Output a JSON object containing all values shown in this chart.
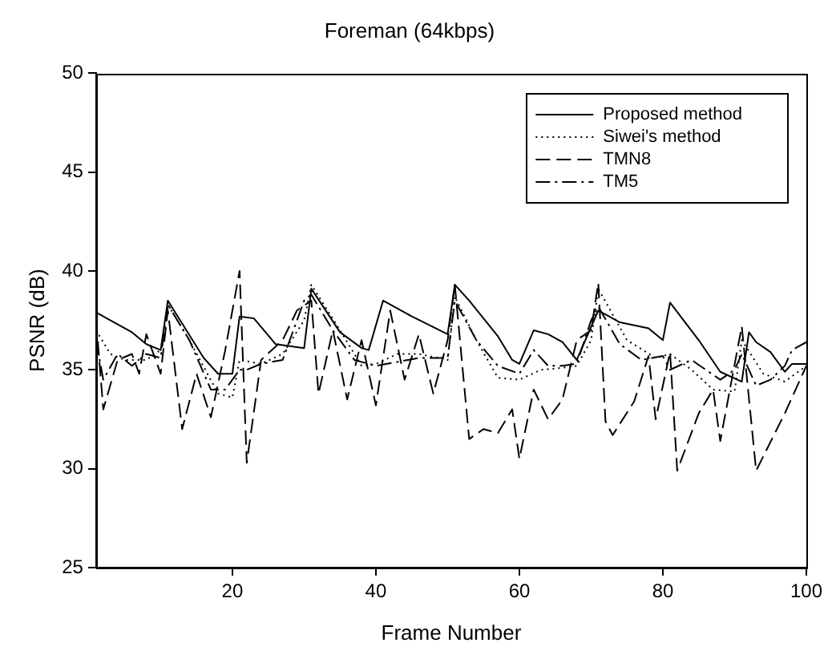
{
  "chart_data": {
    "type": "line",
    "title": "Foreman (64kbps)",
    "xlabel": "Frame Number",
    "ylabel": "PSNR (dB)",
    "xlim": [
      1,
      100
    ],
    "xticks": [
      20,
      40,
      60,
      80,
      100
    ],
    "ylim": [
      25,
      50
    ],
    "yticks": [
      25,
      30,
      35,
      40,
      45,
      50
    ],
    "grid": false,
    "legend": "top right",
    "marker": "none",
    "series": [
      {
        "name": "Proposed method",
        "color": "#000000",
        "line_style": "solid",
        "x": [
          1,
          3,
          6,
          8,
          10,
          11,
          16,
          18,
          20,
          21,
          23,
          26,
          28,
          30,
          31,
          35,
          38,
          39,
          41,
          45,
          50,
          51,
          53,
          57,
          59,
          60,
          62,
          64,
          66,
          68,
          71,
          74,
          78,
          80,
          81,
          85,
          88,
          91,
          92,
          93,
          95,
          97,
          98,
          100
        ],
        "values": [
          37.9,
          37.5,
          36.9,
          36.3,
          36.0,
          38.5,
          35.6,
          34.8,
          34.8,
          37.7,
          37.6,
          36.3,
          36.2,
          36.1,
          39.1,
          36.9,
          36.1,
          36.0,
          38.5,
          37.7,
          36.8,
          39.3,
          38.5,
          36.7,
          35.5,
          35.3,
          37.0,
          36.8,
          36.4,
          35.5,
          38.0,
          37.4,
          37.1,
          36.5,
          38.4,
          36.5,
          34.9,
          34.4,
          36.9,
          36.4,
          35.9,
          34.9,
          35.3,
          35.3
        ]
      },
      {
        "name": "Siwei's method",
        "color": "#000000",
        "line_style": "dotted",
        "x": [
          1,
          3,
          5,
          8,
          10,
          11,
          14,
          18,
          20,
          21,
          24,
          27,
          30,
          31,
          35,
          38,
          40,
          43,
          46,
          50,
          51,
          54,
          57,
          60,
          63,
          66,
          68,
          70,
          71,
          75,
          79,
          81,
          84,
          87,
          90,
          91,
          94,
          97,
          100
        ],
        "values": [
          37.0,
          35.8,
          35.5,
          35.5,
          36.0,
          38.3,
          36.5,
          33.8,
          33.6,
          35.5,
          35.3,
          35.8,
          37.5,
          39.3,
          37.0,
          35.2,
          35.3,
          35.8,
          35.8,
          35.5,
          38.7,
          36.5,
          34.6,
          34.5,
          35.0,
          35.1,
          35.2,
          36.5,
          39.1,
          36.5,
          35.6,
          35.8,
          35.0,
          34.0,
          33.9,
          36.5,
          34.8,
          34.4,
          35.2
        ]
      },
      {
        "name": "TMN8",
        "color": "#000000",
        "line_style": "dashed",
        "x": [
          1,
          2,
          4,
          6,
          7,
          8,
          10,
          11,
          13,
          15,
          17,
          19,
          21,
          22,
          24,
          27,
          29,
          31,
          32,
          34,
          36,
          38,
          40,
          42,
          44,
          46,
          48,
          50,
          51,
          53,
          55,
          57,
          59,
          60,
          62,
          64,
          66,
          68,
          70,
          71,
          72,
          73,
          76,
          78,
          79,
          81,
          82,
          85,
          87,
          88,
          91,
          93,
          97,
          100
        ],
        "values": [
          37.5,
          33.0,
          35.5,
          35.8,
          34.8,
          36.8,
          34.8,
          38.0,
          32.0,
          34.8,
          32.6,
          36.0,
          40.0,
          30.3,
          35.5,
          36.5,
          38.0,
          38.5,
          33.8,
          37.0,
          33.5,
          36.5,
          33.2,
          38.0,
          34.5,
          36.8,
          33.8,
          36.5,
          39.3,
          31.5,
          32.0,
          31.8,
          33.0,
          30.5,
          34.0,
          32.5,
          33.5,
          36.5,
          37.0,
          39.4,
          32.4,
          31.7,
          33.4,
          35.7,
          32.5,
          35.9,
          29.9,
          32.8,
          34.0,
          31.4,
          37.2,
          29.9,
          32.8,
          35.2
        ]
      },
      {
        "name": "TM5",
        "color": "#000000",
        "line_style": "dashdot",
        "x": [
          1,
          2,
          4,
          6,
          8,
          10,
          11,
          14,
          17,
          19,
          21,
          22,
          24,
          27,
          30,
          31,
          34,
          37,
          40,
          43,
          46,
          50,
          51,
          54,
          57,
          60,
          62,
          64,
          66,
          68,
          70,
          71,
          74,
          77,
          80,
          81,
          84,
          88,
          90,
          91,
          93,
          95,
          97,
          98,
          100
        ],
        "values": [
          36.5,
          34.5,
          35.8,
          35.2,
          35.8,
          35.6,
          38.3,
          36.5,
          34.0,
          34.0,
          35.0,
          35.0,
          35.3,
          35.5,
          38.5,
          38.8,
          37.0,
          35.5,
          35.2,
          35.4,
          35.6,
          35.6,
          38.5,
          36.5,
          35.2,
          34.8,
          36.0,
          35.2,
          35.2,
          35.3,
          37.5,
          38.2,
          36.3,
          35.5,
          35.7,
          35.0,
          35.5,
          34.5,
          35.0,
          35.8,
          34.2,
          34.5,
          35.2,
          36.0,
          36.4
        ]
      }
    ]
  }
}
